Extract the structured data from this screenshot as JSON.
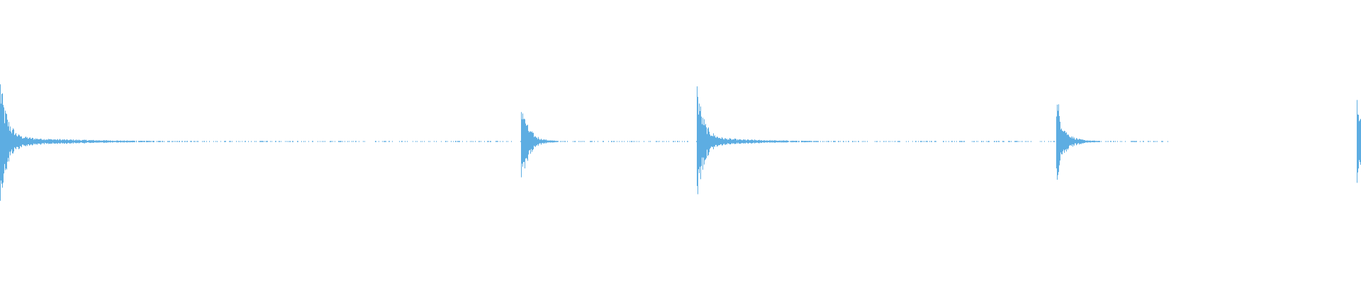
{
  "chart_data": {
    "type": "area",
    "kind": "audio-waveform",
    "title": "",
    "xlabel": "",
    "ylabel": "",
    "ylim": [
      -1,
      1
    ],
    "grid": false,
    "color": "#5dade2",
    "background": "#ffffff",
    "series": [
      {
        "events": [
          {
            "onset_fraction": 0.0,
            "peak_amplitude": 0.54,
            "tail_fraction": 0.22
          },
          {
            "onset_fraction": 0.383,
            "peak_amplitude": 0.36,
            "tail_fraction": 0.06
          },
          {
            "onset_fraction": 0.512,
            "peak_amplitude": 0.48,
            "tail_fraction": 0.17
          },
          {
            "onset_fraction": 0.776,
            "peak_amplitude": 0.38,
            "tail_fraction": 0.07
          },
          {
            "onset_fraction": 0.997,
            "peak_amplitude": 0.36,
            "tail_fraction": 0.003
          }
        ]
      }
    ]
  }
}
